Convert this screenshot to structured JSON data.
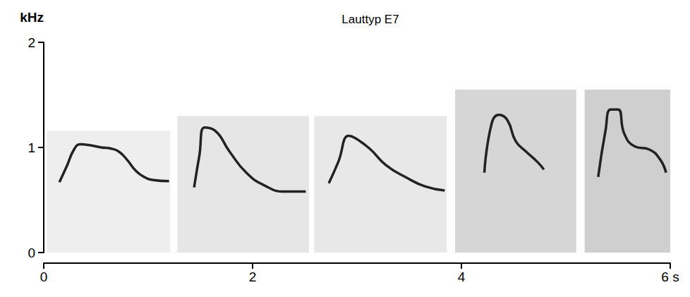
{
  "chart_data": {
    "type": "line",
    "title": "Lauttyp E7",
    "y_label": "kHz",
    "xlim": [
      0,
      6
    ],
    "xticks": [
      0,
      2,
      4,
      {
        "value": 6,
        "label": "6 s"
      }
    ],
    "ylim": [
      0,
      2
    ],
    "yticks": [
      0,
      1,
      2
    ],
    "grid": false,
    "panels": [
      {
        "x": [
          0.03,
          1.21
        ],
        "y": [
          0,
          1.16
        ],
        "color": "#eeeeee"
      },
      {
        "x": [
          1.28,
          2.54
        ],
        "y": [
          0,
          1.3
        ],
        "color": "#e6e6e6"
      },
      {
        "x": [
          2.59,
          3.86
        ],
        "y": [
          0,
          1.3
        ],
        "color": "#e8e8e8"
      },
      {
        "x": [
          3.94,
          5.1
        ],
        "y": [
          0,
          1.55
        ],
        "color": "#d6d6d6"
      },
      {
        "x": [
          5.18,
          6.0
        ],
        "y": [
          0,
          1.55
        ],
        "color": "#cfcfcf"
      }
    ],
    "series": [
      {
        "color": "#222222",
        "x": [
          0.15,
          0.22,
          0.29,
          0.35,
          0.45,
          0.55,
          0.64,
          0.72,
          0.8,
          0.88,
          0.96,
          1.05,
          1.2
        ],
        "values": [
          0.67,
          0.82,
          0.98,
          1.03,
          1.02,
          1.0,
          0.99,
          0.96,
          0.88,
          0.78,
          0.72,
          0.69,
          0.68
        ]
      },
      {
        "color": "#222222",
        "x": [
          1.44,
          1.49,
          1.54,
          1.64,
          1.78,
          1.94,
          2.11,
          2.31,
          2.51
        ],
        "values": [
          0.62,
          0.92,
          1.19,
          1.16,
          0.96,
          0.76,
          0.64,
          0.58,
          0.58
        ]
      },
      {
        "color": "#222222",
        "x": [
          2.73,
          2.82,
          2.92,
          2.98,
          3.12,
          3.28,
          3.48,
          3.65,
          3.84
        ],
        "values": [
          0.66,
          0.86,
          1.11,
          1.09,
          0.99,
          0.83,
          0.71,
          0.63,
          0.59
        ]
      },
      {
        "color": "#222222",
        "x": [
          4.22,
          4.29,
          4.36,
          4.44,
          4.52,
          4.62,
          4.73,
          4.79
        ],
        "values": [
          0.76,
          1.23,
          1.31,
          1.26,
          1.06,
          0.96,
          0.86,
          0.79
        ]
      },
      {
        "color": "#222222",
        "x": [
          5.31,
          5.38,
          5.43,
          5.5,
          5.56,
          5.66,
          5.8,
          5.9,
          5.96
        ],
        "values": [
          0.72,
          1.16,
          1.36,
          1.36,
          1.13,
          1.01,
          0.98,
          0.89,
          0.76
        ]
      }
    ]
  }
}
